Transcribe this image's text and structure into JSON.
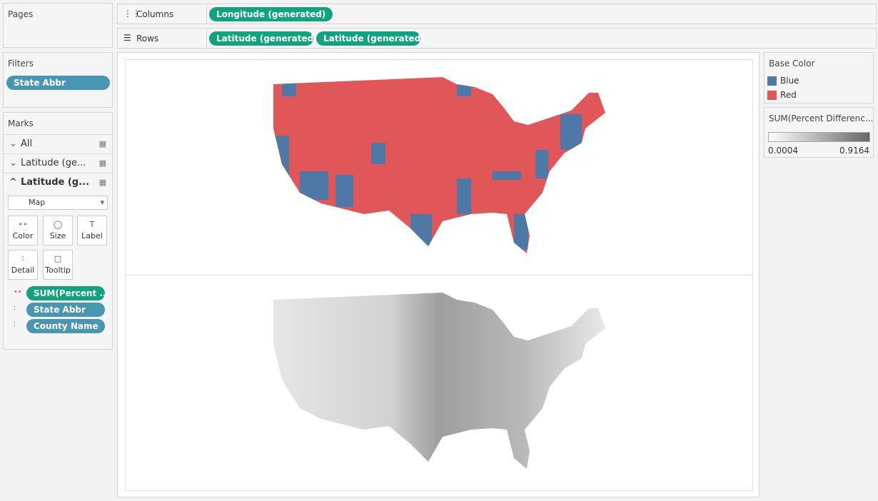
{
  "pages": {
    "title": "Pages"
  },
  "columns_shelf": {
    "label": "Columns",
    "pills": [
      "Longitude (generated)"
    ]
  },
  "rows_shelf": {
    "label": "Rows",
    "pills": [
      "Latitude (generated)",
      "Latitude (generated)"
    ]
  },
  "filters": {
    "title": "Filters",
    "pills": [
      "State Abbr"
    ]
  },
  "marks": {
    "title": "Marks",
    "cards": [
      "All",
      "Latitude (ge...",
      "Latitude (g..."
    ],
    "mark_type": "Map",
    "buttons": [
      "Color",
      "Size",
      "Label",
      "Detail",
      "Tooltip"
    ],
    "fields": [
      "SUM(Percent ..",
      "State Abbr",
      "County Name"
    ]
  },
  "legend_color": {
    "title": "Base Color",
    "items": [
      {
        "label": "Blue",
        "color": "#4e79a7"
      },
      {
        "label": "Red",
        "color": "#e15759"
      }
    ]
  },
  "legend_gradient": {
    "title": "SUM(Percent Differenc...",
    "min": 0.0004,
    "max": 0.9164
  }
}
